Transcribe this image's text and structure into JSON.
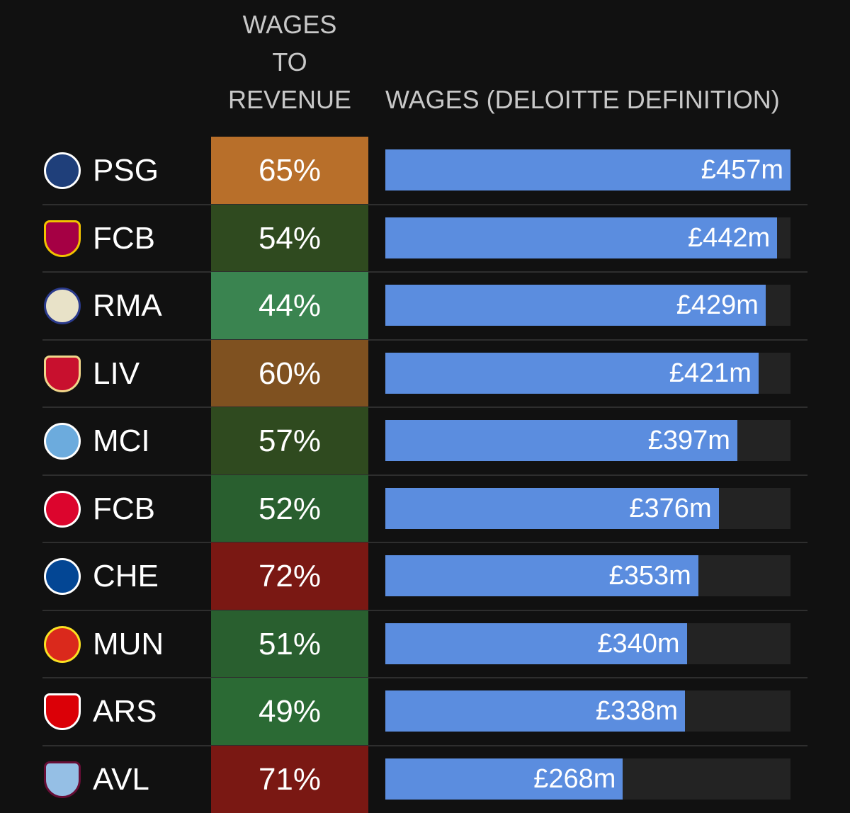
{
  "header": {
    "ratio_lines": [
      "WAGES",
      "TO",
      "REVENUE"
    ],
    "wages_label": "WAGES (DELOITTE DEFINITION)"
  },
  "colors": {
    "bar": "#5b8ddf",
    "track": "#232323",
    "ratio_scale": {
      "72%": "#7a1813",
      "71%": "#7a1813",
      "65%": "#b86f2a",
      "60%": "#7f5120",
      "57%": "#2f4a1f",
      "54%": "#2f4a1f",
      "52%": "#295f2f",
      "51%": "#295f2f",
      "49%": "#2b6a34",
      "44%": "#3a8450"
    }
  },
  "chart_data": {
    "type": "bar",
    "title": "",
    "series_label": "WAGES (DELOITTE DEFINITION)",
    "ratio_label": "WAGES TO REVENUE",
    "categories": [
      "PSG",
      "FCB",
      "RMA",
      "LIV",
      "MCI",
      "FCB",
      "CHE",
      "MUN",
      "ARS",
      "AVL"
    ],
    "ratios": [
      "65%",
      "54%",
      "44%",
      "60%",
      "57%",
      "52%",
      "72%",
      "51%",
      "49%",
      "71%"
    ],
    "values": [
      457,
      442,
      429,
      421,
      397,
      376,
      353,
      340,
      338,
      268
    ],
    "value_labels": [
      "£457m",
      "£442m",
      "£429m",
      "£421m",
      "£397m",
      "£376m",
      "£353m",
      "£340m",
      "£338m",
      "£268m"
    ],
    "unit": "£m",
    "xlim": [
      0,
      457
    ],
    "crests": [
      {
        "icon": "psg-crest-icon",
        "bg": "#1f3f7a",
        "fg": "#ffffff",
        "shield": false
      },
      {
        "icon": "barcelona-crest-icon",
        "bg": "#a50044",
        "fg": "#f2c200",
        "shield": true
      },
      {
        "icon": "real-madrid-crest-icon",
        "bg": "#e8e2c8",
        "fg": "#2a3a8c",
        "shield": false
      },
      {
        "icon": "liverpool-crest-icon",
        "bg": "#c8102e",
        "fg": "#f0d68a",
        "shield": true
      },
      {
        "icon": "man-city-crest-icon",
        "bg": "#6cabdd",
        "fg": "#ffffff",
        "shield": false
      },
      {
        "icon": "bayern-crest-icon",
        "bg": "#dc052d",
        "fg": "#ffffff",
        "shield": false
      },
      {
        "icon": "chelsea-crest-icon",
        "bg": "#034694",
        "fg": "#ffffff",
        "shield": false
      },
      {
        "icon": "man-united-crest-icon",
        "bg": "#da291c",
        "fg": "#fbe122",
        "shield": false
      },
      {
        "icon": "arsenal-crest-icon",
        "bg": "#db0007",
        "fg": "#ffffff",
        "shield": true
      },
      {
        "icon": "aston-villa-crest-icon",
        "bg": "#95bfe5",
        "fg": "#670e36",
        "shield": true
      }
    ]
  }
}
